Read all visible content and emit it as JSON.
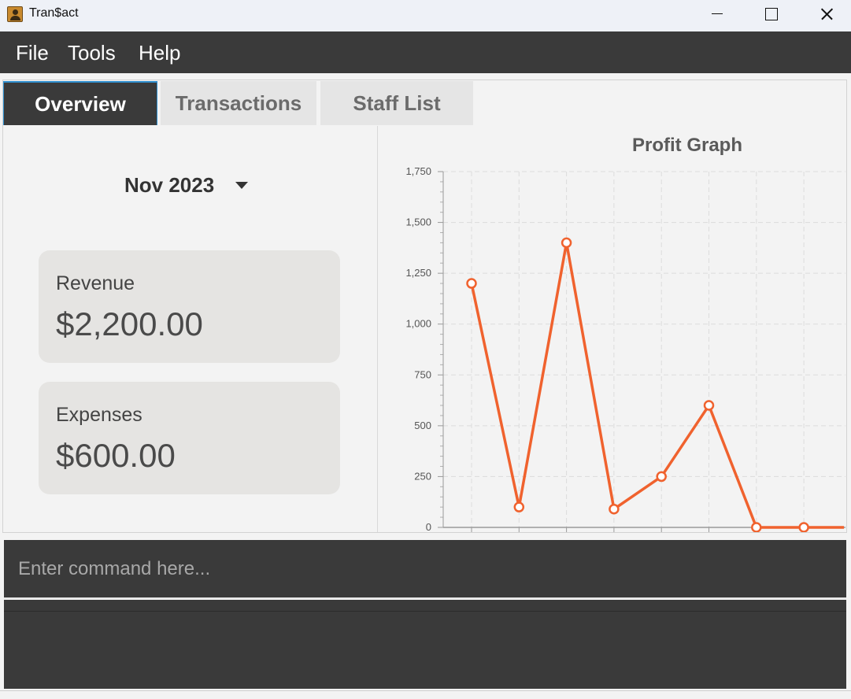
{
  "window": {
    "title": "Tran$act",
    "icon": "app-contact-icon"
  },
  "menu": {
    "items": [
      "File",
      "Tools",
      "Help"
    ]
  },
  "tabs": [
    {
      "label": "Overview",
      "selected": true
    },
    {
      "label": "Transactions",
      "selected": false
    },
    {
      "label": "Staff List",
      "selected": false
    }
  ],
  "overview": {
    "month_selected": "Nov 2023",
    "revenue": {
      "label": "Revenue",
      "value": "$2,200.00"
    },
    "expenses": {
      "label": "Expenses",
      "value": "$600.00"
    }
  },
  "chart_data": {
    "type": "line",
    "title": "Profit Graph",
    "xlabel": "",
    "ylabel": "",
    "x": [
      1,
      2,
      3,
      4,
      5,
      6,
      7,
      8
    ],
    "series": [
      {
        "values": [
          1200,
          100,
          1400,
          90,
          250,
          600,
          0,
          0
        ]
      }
    ],
    "ylim": [
      0,
      1750
    ],
    "yticks": [
      "0",
      "250",
      "500",
      "750",
      "1,000",
      "1,250",
      "1,500",
      "1,750"
    ],
    "grid": true,
    "legend": "none",
    "line_color": "#f0622e"
  },
  "command": {
    "placeholder": "Enter command here...",
    "value": ""
  }
}
